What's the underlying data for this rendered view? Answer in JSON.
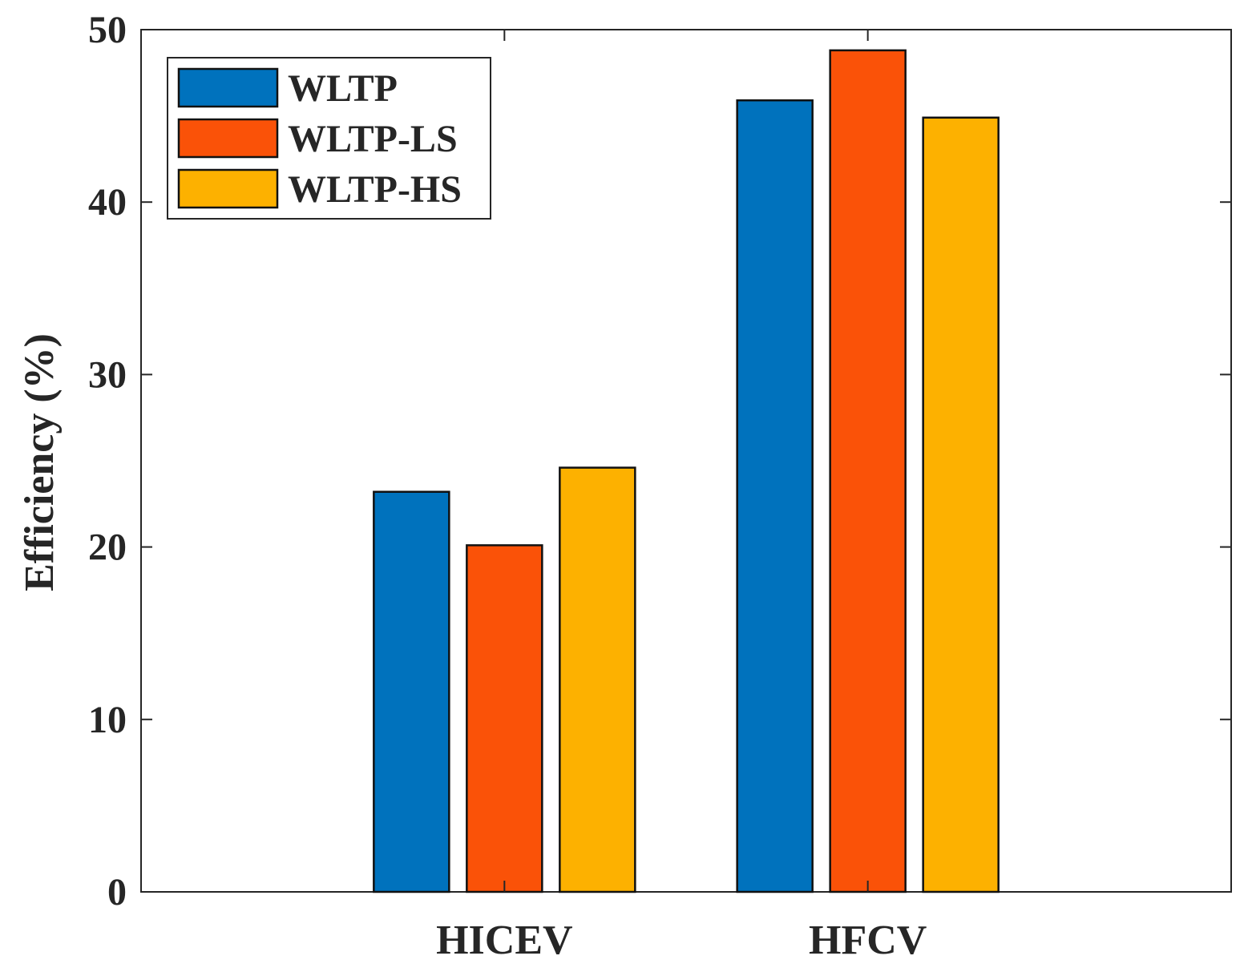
{
  "chart_data": {
    "type": "bar",
    "title": "",
    "xlabel": "",
    "ylabel": "Efficiency (%)",
    "categories": [
      "HICEV",
      "HFCV"
    ],
    "series": [
      {
        "name": "WLTP",
        "color": "#0072BD",
        "values": [
          23.2,
          45.9
        ]
      },
      {
        "name": "WLTP-LS",
        "color": "#FA5208",
        "values": [
          20.1,
          48.8
        ]
      },
      {
        "name": "WLTP-HS",
        "color": "#FDB100",
        "values": [
          24.6,
          44.9
        ]
      }
    ],
    "ylim": [
      0,
      50
    ],
    "yticks": [
      0,
      10,
      20,
      30,
      40,
      50
    ],
    "grid": false,
    "legend_position": "top-left"
  }
}
